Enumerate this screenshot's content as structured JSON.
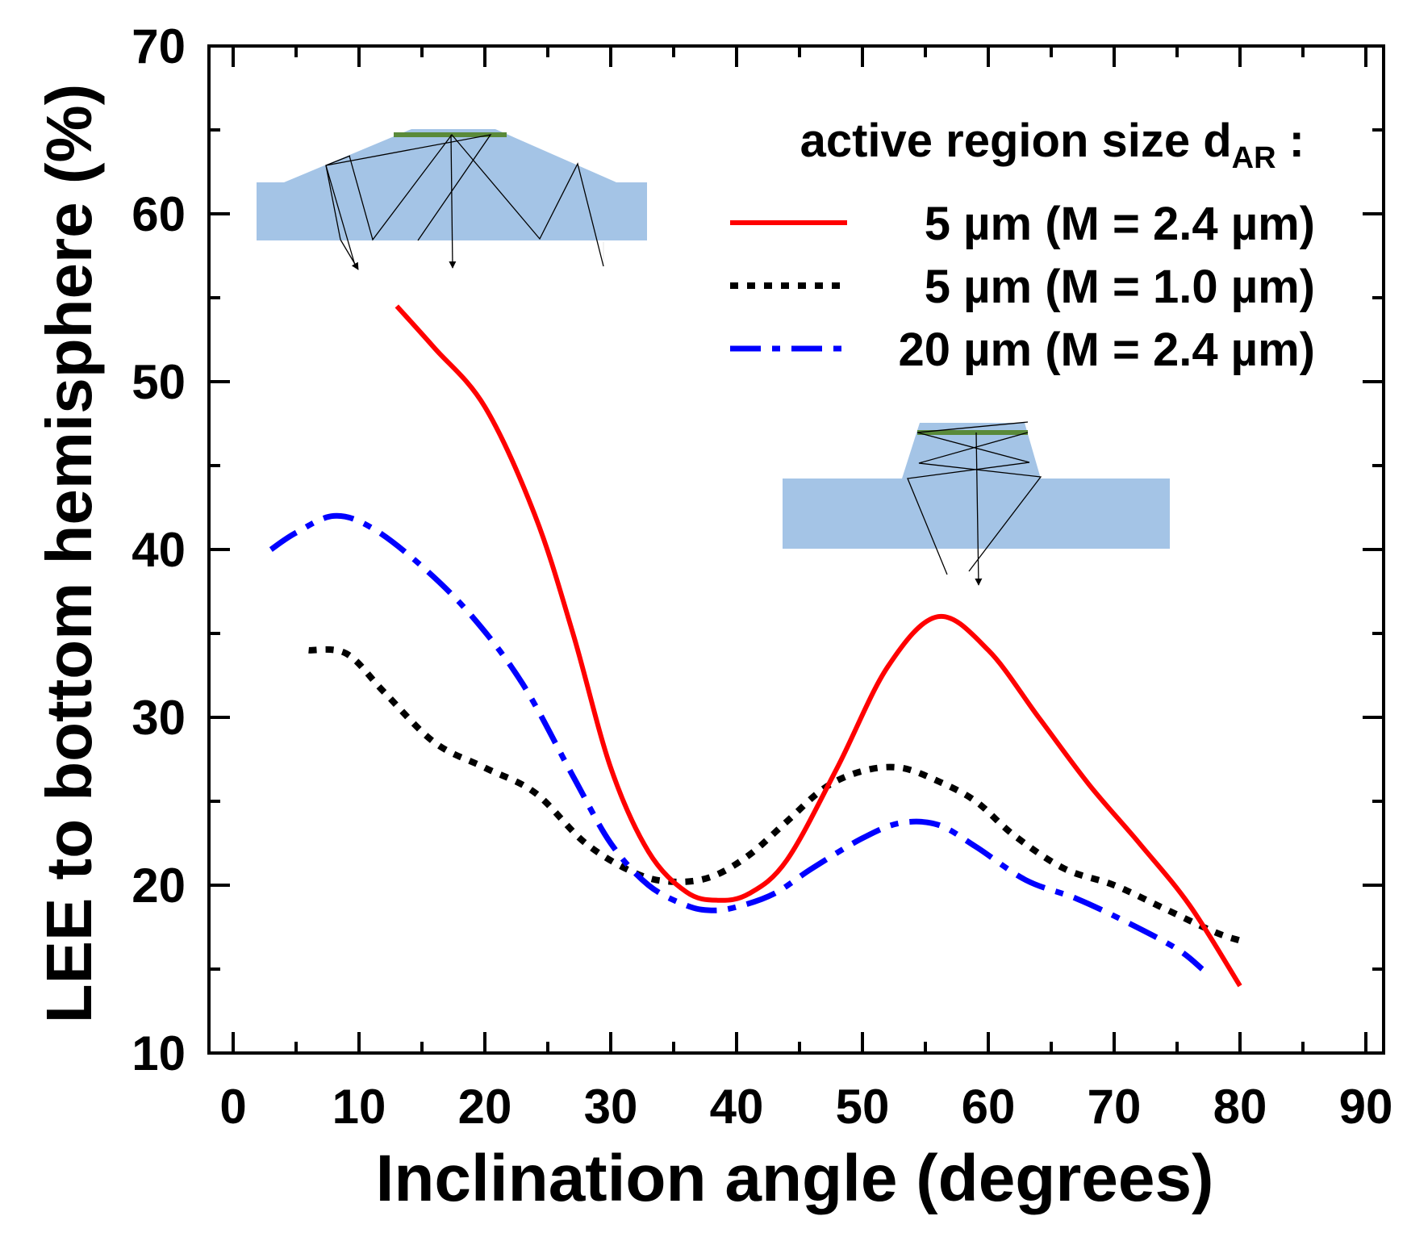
{
  "chart_data": {
    "type": "line",
    "xlabel": "Inclination angle (degrees)",
    "ylabel": "LEE to bottom hemisphere (%)",
    "xlim": [
      -2,
      92
    ],
    "ylim": [
      10,
      70
    ],
    "x_ticks": [
      0,
      10,
      20,
      30,
      40,
      50,
      60,
      70,
      80,
      90
    ],
    "y_ticks": [
      10,
      20,
      30,
      40,
      50,
      60,
      70
    ],
    "grid": false,
    "legend": {
      "title_main": "active region size d",
      "title_sub": "AR",
      "title_tail": " :",
      "placement": "top-right"
    },
    "series": [
      {
        "name": "5 µm (M = 2.4 µm)",
        "color": "#ff0000",
        "style": "solid",
        "points": [
          [
            13,
            54.5
          ],
          [
            16,
            52
          ],
          [
            20,
            48.5
          ],
          [
            24,
            42
          ],
          [
            27,
            35
          ],
          [
            30,
            27
          ],
          [
            33,
            22
          ],
          [
            36,
            19.6
          ],
          [
            38.5,
            19.1
          ],
          [
            41,
            19.5
          ],
          [
            44,
            21.5
          ],
          [
            48,
            27
          ],
          [
            52,
            33
          ],
          [
            56,
            36
          ],
          [
            60,
            34
          ],
          [
            64,
            30
          ],
          [
            68,
            26
          ],
          [
            72,
            22.5
          ],
          [
            76,
            18.8
          ],
          [
            80,
            14
          ]
        ]
      },
      {
        "name": "5 µm (M = 1.0 µm)",
        "color": "#000000",
        "style": "dotted",
        "points": [
          [
            6,
            34
          ],
          [
            9,
            33.8
          ],
          [
            12,
            31.5
          ],
          [
            16,
            28.5
          ],
          [
            20,
            27
          ],
          [
            24,
            25.5
          ],
          [
            28,
            22.5
          ],
          [
            32,
            20.7
          ],
          [
            35,
            20.2
          ],
          [
            38,
            20.5
          ],
          [
            41,
            21.8
          ],
          [
            44,
            23.8
          ],
          [
            47,
            25.8
          ],
          [
            50,
            26.8
          ],
          [
            53,
            27
          ],
          [
            56,
            26.2
          ],
          [
            59,
            25
          ],
          [
            62,
            23
          ],
          [
            66,
            21
          ],
          [
            70,
            20
          ],
          [
            74,
            18.6
          ],
          [
            78,
            17.2
          ],
          [
            80,
            16.7
          ]
        ]
      },
      {
        "name": "20 µm (M = 2.4 µm)",
        "color": "#0000ff",
        "style": "dashdot",
        "points": [
          [
            3,
            40
          ],
          [
            5,
            41
          ],
          [
            8,
            42
          ],
          [
            11,
            41.3
          ],
          [
            15,
            39
          ],
          [
            19,
            36
          ],
          [
            23,
            32
          ],
          [
            27,
            26.5
          ],
          [
            30,
            22.5
          ],
          [
            33,
            20
          ],
          [
            36,
            18.8
          ],
          [
            38,
            18.5
          ],
          [
            40,
            18.7
          ],
          [
            43,
            19.5
          ],
          [
            46,
            21
          ],
          [
            50,
            22.8
          ],
          [
            53,
            23.7
          ],
          [
            56,
            23.6
          ],
          [
            59,
            22.3
          ],
          [
            63,
            20.3
          ],
          [
            67,
            19.2
          ],
          [
            71,
            17.8
          ],
          [
            75,
            16.2
          ],
          [
            77,
            15
          ]
        ]
      }
    ]
  },
  "insets": [
    {
      "id": "inset-left",
      "fill": "#a4c4e6",
      "active_layer": "#5a8a3a"
    },
    {
      "id": "inset-right",
      "fill": "#a4c4e6",
      "active_layer": "#5a8a3a"
    }
  ]
}
